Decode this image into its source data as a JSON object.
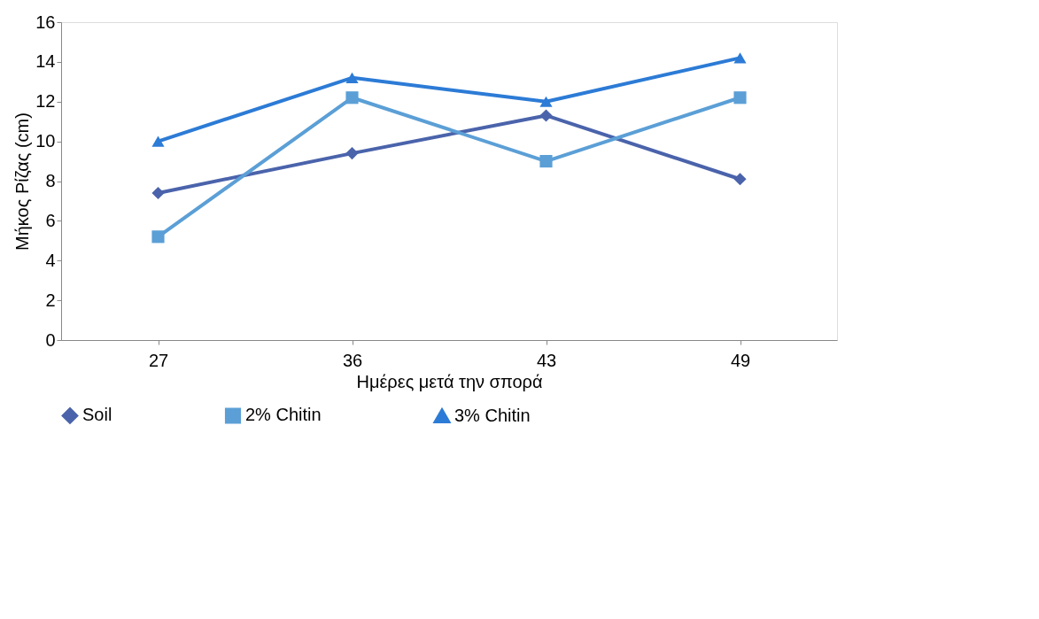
{
  "chart_data": {
    "type": "line",
    "xlabel": "Ημέρες μετά την σπορά",
    "ylabel": "Μήκος Ρίζας (cm)",
    "categories": [
      "27",
      "36",
      "43",
      "49"
    ],
    "series": [
      {
        "name": "Soil",
        "color": "#4a63ab",
        "marker": "diamond",
        "values": [
          7.4,
          9.4,
          11.3,
          8.1
        ]
      },
      {
        "name": "2% Chitin",
        "color": "#5b9fd6",
        "marker": "square",
        "values": [
          5.2,
          12.2,
          9.0,
          12.2
        ]
      },
      {
        "name": "3% Chitin",
        "color": "#2c7bd6",
        "marker": "triangle",
        "values": [
          10.0,
          13.2,
          12.0,
          14.2
        ]
      }
    ],
    "ylim": [
      0,
      16
    ],
    "yticks": [
      0,
      2,
      4,
      6,
      8,
      10,
      12,
      14,
      16
    ],
    "grid": false,
    "legend": "bottom"
  }
}
